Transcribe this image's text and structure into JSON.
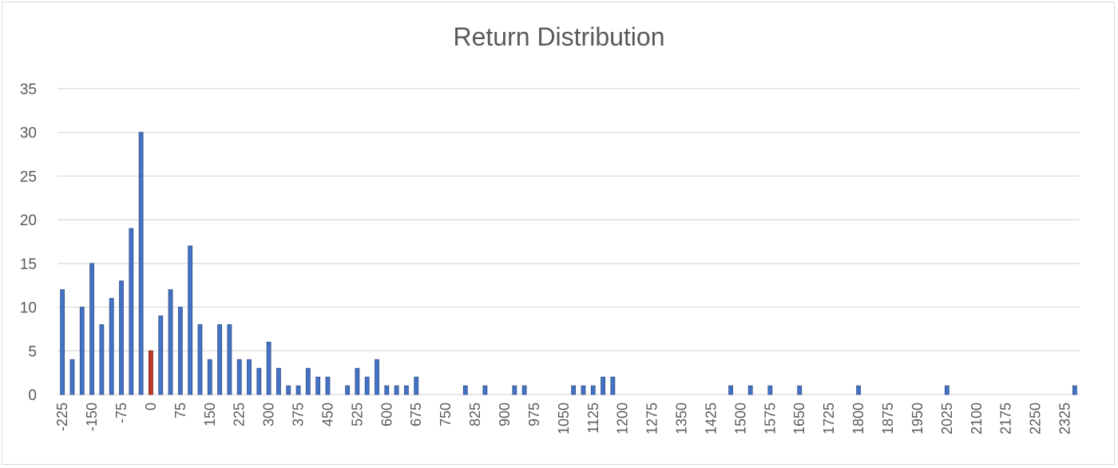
{
  "chart_data": {
    "type": "bar",
    "title": "Return Distribution",
    "xlabel": "",
    "ylabel": "",
    "ylim": [
      0,
      35
    ],
    "yticks": [
      0,
      5,
      10,
      15,
      20,
      25,
      30,
      35
    ],
    "bin_width": 25,
    "x_start": -225,
    "x_end": 2375,
    "categories": [
      -225,
      -200,
      -175,
      -150,
      -125,
      -100,
      -75,
      -50,
      -25,
      0,
      25,
      50,
      75,
      100,
      125,
      150,
      175,
      200,
      225,
      250,
      275,
      300,
      325,
      350,
      375,
      400,
      425,
      450,
      475,
      500,
      525,
      550,
      575,
      600,
      625,
      650,
      675,
      700,
      725,
      750,
      775,
      800,
      825,
      850,
      875,
      900,
      925,
      950,
      975,
      1000,
      1025,
      1050,
      1075,
      1100,
      1125,
      1150,
      1175,
      1200,
      1225,
      1250,
      1275,
      1300,
      1325,
      1350,
      1375,
      1400,
      1425,
      1450,
      1475,
      1500,
      1525,
      1550,
      1575,
      1600,
      1625,
      1650,
      1675,
      1700,
      1725,
      1750,
      1775,
      1800,
      1825,
      1850,
      1875,
      1900,
      1925,
      1950,
      1975,
      2000,
      2025,
      2050,
      2075,
      2100,
      2125,
      2150,
      2175,
      2200,
      2225,
      2250,
      2275,
      2300,
      2325,
      2350
    ],
    "values": [
      12,
      4,
      10,
      15,
      8,
      11,
      13,
      19,
      30,
      5,
      9,
      12,
      10,
      17,
      8,
      4,
      8,
      8,
      4,
      4,
      3,
      6,
      3,
      1,
      1,
      3,
      2,
      2,
      0,
      1,
      3,
      2,
      4,
      1,
      1,
      1,
      2,
      0,
      0,
      0,
      0,
      1,
      0,
      1,
      0,
      0,
      1,
      1,
      0,
      0,
      0,
      0,
      1,
      1,
      1,
      2,
      2,
      0,
      0,
      0,
      0,
      0,
      0,
      0,
      0,
      0,
      0,
      0,
      1,
      0,
      1,
      0,
      1,
      0,
      0,
      1,
      0,
      0,
      0,
      0,
      0,
      1,
      0,
      0,
      0,
      0,
      0,
      0,
      0,
      0,
      1,
      0,
      0,
      0,
      0,
      0,
      0,
      0,
      0,
      0,
      0,
      0,
      0,
      1
    ],
    "xtick_labels": [
      "-225",
      "-150",
      "-75",
      "0",
      "75",
      "150",
      "225",
      "300",
      "375",
      "450",
      "525",
      "600",
      "675",
      "750",
      "825",
      "900",
      "975",
      "1050",
      "1125",
      "1200",
      "1275",
      "1350",
      "1425",
      "1500",
      "1575",
      "1650",
      "1725",
      "1800",
      "1875",
      "1950",
      "2025",
      "2100",
      "2175",
      "2250",
      "2325"
    ],
    "xtick_values": [
      -225,
      -150,
      -75,
      0,
      75,
      150,
      225,
      300,
      375,
      450,
      525,
      600,
      675,
      750,
      825,
      900,
      975,
      1050,
      1125,
      1200,
      1275,
      1350,
      1425,
      1500,
      1575,
      1650,
      1725,
      1800,
      1875,
      1950,
      2025,
      2100,
      2175,
      2250,
      2325
    ],
    "highlight_category": 0,
    "colors": {
      "bar": "#4472c4",
      "bar_edge": "#2f4f8a",
      "highlight": "#c0392b",
      "highlight_edge": "#7b1d14",
      "grid": "#d9d9d9",
      "text": "#595959"
    },
    "grid": true,
    "legend": "none"
  }
}
